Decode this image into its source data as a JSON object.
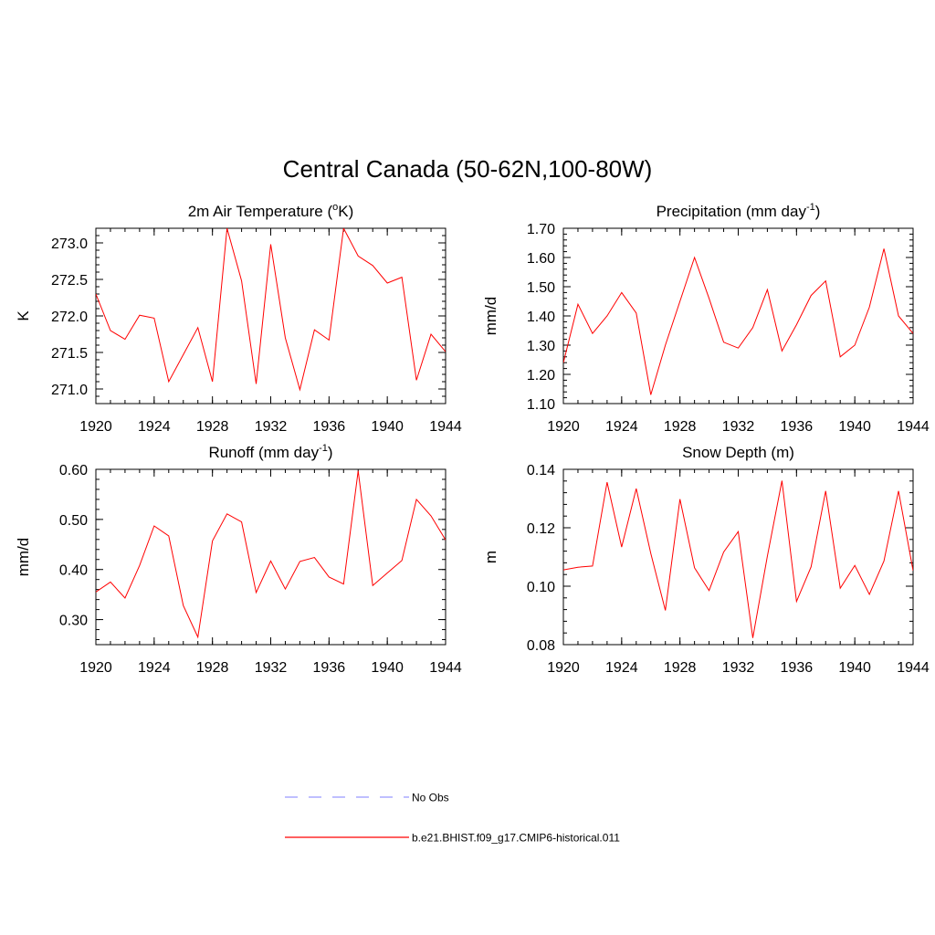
{
  "title": "Central Canada (50-62N,100-80W)",
  "colors": {
    "model": "#ff0000",
    "obs": "#9999ff",
    "axis": "#000000"
  },
  "legend": [
    {
      "label": "No Obs",
      "style": "dashed",
      "color": "#9999ff"
    },
    {
      "label": "b.e21.BHIST.f09_g17.CMIP6-historical.011",
      "style": "solid",
      "color": "#ff0000"
    }
  ],
  "chart_data": [
    {
      "type": "line",
      "title_main": "2m Air Temperature (",
      "title_sup": "o",
      "title_end": "K)",
      "ylabel": "K",
      "xlim": [
        1920,
        1944
      ],
      "ylim": [
        270.8,
        273.2
      ],
      "xticks": [
        1920,
        1924,
        1928,
        1932,
        1936,
        1940,
        1944
      ],
      "yticks": [
        271.0,
        271.5,
        272.0,
        272.5,
        273.0
      ],
      "ytick_labels": [
        "271.0",
        "271.5",
        "272.0",
        "272.5",
        "273.0"
      ],
      "x": [
        1920,
        1921,
        1922,
        1923,
        1924,
        1925,
        1926,
        1927,
        1928,
        1929,
        1930,
        1931,
        1932,
        1933,
        1934,
        1935,
        1936,
        1937,
        1938,
        1939,
        1940,
        1941,
        1942,
        1943,
        1944
      ],
      "series": [
        {
          "name": "b.e21.BHIST.f09_g17.CMIP6-historical.011",
          "values": [
            272.3,
            271.8,
            271.68,
            272.01,
            271.97,
            271.1,
            271.47,
            271.84,
            271.1,
            273.2,
            272.48,
            271.07,
            272.98,
            271.7,
            270.99,
            271.81,
            271.67,
            273.2,
            272.82,
            272.69,
            272.45,
            272.53,
            271.12,
            271.75,
            271.51
          ]
        }
      ]
    },
    {
      "type": "line",
      "title_main": "Precipitation (mm day",
      "title_sup": "-1",
      "title_end": ")",
      "ylabel": "mm/d",
      "xlim": [
        1920,
        1944
      ],
      "ylim": [
        1.1,
        1.7
      ],
      "xticks": [
        1920,
        1924,
        1928,
        1932,
        1936,
        1940,
        1944
      ],
      "yticks": [
        1.1,
        1.2,
        1.3,
        1.4,
        1.5,
        1.6,
        1.7
      ],
      "ytick_labels": [
        "1.10",
        "1.20",
        "1.30",
        "1.40",
        "1.50",
        "1.60",
        "1.70"
      ],
      "x": [
        1920,
        1921,
        1922,
        1923,
        1924,
        1925,
        1926,
        1927,
        1928,
        1929,
        1930,
        1931,
        1932,
        1933,
        1934,
        1935,
        1936,
        1937,
        1938,
        1939,
        1940,
        1941,
        1942,
        1943,
        1944
      ],
      "series": [
        {
          "name": "b.e21.BHIST.f09_g17.CMIP6-historical.011",
          "values": [
            1.24,
            1.44,
            1.34,
            1.4,
            1.48,
            1.41,
            1.13,
            1.3,
            1.45,
            1.6,
            1.46,
            1.31,
            1.29,
            1.36,
            1.49,
            1.28,
            1.37,
            1.47,
            1.52,
            1.26,
            1.3,
            1.43,
            1.63,
            1.4,
            1.34
          ]
        }
      ]
    },
    {
      "type": "line",
      "title_main": "Runoff (mm day",
      "title_sup": "-1",
      "title_end": ")",
      "ylabel": "mm/d",
      "xlim": [
        1920,
        1944
      ],
      "ylim": [
        0.25,
        0.6
      ],
      "xticks": [
        1920,
        1924,
        1928,
        1932,
        1936,
        1940,
        1944
      ],
      "yticks": [
        0.3,
        0.4,
        0.5,
        0.6
      ],
      "ytick_labels": [
        "0.30",
        "0.40",
        "0.50",
        "0.60"
      ],
      "x": [
        1920,
        1921,
        1922,
        1923,
        1924,
        1925,
        1926,
        1927,
        1928,
        1929,
        1930,
        1931,
        1932,
        1933,
        1934,
        1935,
        1936,
        1937,
        1938,
        1939,
        1940,
        1941,
        1942,
        1943,
        1944
      ],
      "series": [
        {
          "name": "b.e21.BHIST.f09_g17.CMIP6-historical.011",
          "values": [
            0.355,
            0.375,
            0.343,
            0.408,
            0.487,
            0.467,
            0.328,
            0.265,
            0.457,
            0.511,
            0.495,
            0.354,
            0.417,
            0.361,
            0.416,
            0.424,
            0.385,
            0.371,
            0.597,
            0.368,
            0.393,
            0.418,
            0.54,
            0.507,
            0.459
          ]
        }
      ]
    },
    {
      "type": "line",
      "title_main": "Snow Depth (m)",
      "title_sup": "",
      "title_end": "",
      "ylabel": "m",
      "xlim": [
        1920,
        1944
      ],
      "ylim": [
        0.08,
        0.14
      ],
      "xticks": [
        1920,
        1924,
        1928,
        1932,
        1936,
        1940,
        1944
      ],
      "yticks": [
        0.08,
        0.1,
        0.12,
        0.14
      ],
      "ytick_labels": [
        "0.08",
        "0.10",
        "0.12",
        "0.14"
      ],
      "x": [
        1920,
        1921,
        1922,
        1923,
        1924,
        1925,
        1926,
        1927,
        1928,
        1929,
        1930,
        1931,
        1932,
        1933,
        1934,
        1935,
        1936,
        1937,
        1938,
        1939,
        1940,
        1941,
        1942,
        1943,
        1944
      ],
      "series": [
        {
          "name": "b.e21.BHIST.f09_g17.CMIP6-historical.011",
          "values": [
            0.1056,
            0.1065,
            0.1069,
            0.1356,
            0.1134,
            0.1334,
            0.1112,
            0.0917,
            0.1298,
            0.1063,
            0.0985,
            0.1117,
            0.1187,
            0.0823,
            0.1103,
            0.1361,
            0.0948,
            0.1066,
            0.1326,
            0.0993,
            0.1071,
            0.0972,
            0.1086,
            0.1326,
            0.1053
          ]
        }
      ]
    }
  ]
}
